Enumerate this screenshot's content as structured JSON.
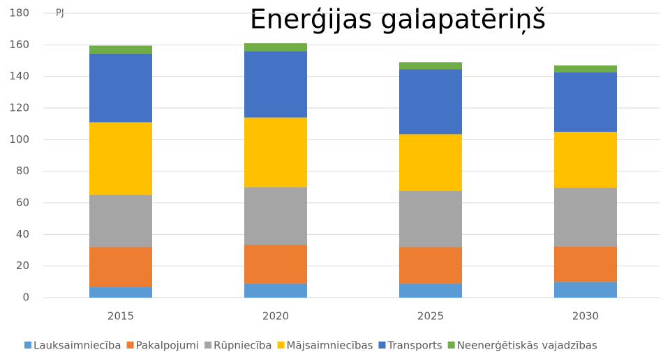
{
  "chart_data": {
    "type": "bar",
    "stacked": true,
    "title": "Enerģijas galapatēriņš",
    "y_label": "PJ",
    "categories": [
      "2015",
      "2020",
      "2025",
      "2030"
    ],
    "series": [
      {
        "name": "Lauksaimniecība",
        "color": "#5b9bd5",
        "values": [
          7,
          9,
          9,
          10
        ]
      },
      {
        "name": "Pakalpojumi",
        "color": "#ed7d31",
        "values": [
          25,
          24.5,
          23,
          22.5
        ]
      },
      {
        "name": "Rūpniecība",
        "color": "#a5a5a5",
        "values": [
          33,
          36.5,
          35.5,
          37
        ]
      },
      {
        "name": "Mājsaimniecības",
        "color": "#ffc000",
        "values": [
          46,
          44,
          36,
          35.5
        ]
      },
      {
        "name": "Transports",
        "color": "#4472c4",
        "values": [
          43.5,
          42,
          41,
          37.5
        ]
      },
      {
        "name": "Neenerģētiskās vajadzības",
        "color": "#70ad47",
        "values": [
          5,
          5,
          4.5,
          4.5
        ]
      }
    ],
    "ylim": [
      0,
      180
    ],
    "yticks": [
      0,
      20,
      40,
      60,
      80,
      100,
      120,
      140,
      160,
      180
    ],
    "grid": true,
    "legend": "bottom"
  }
}
